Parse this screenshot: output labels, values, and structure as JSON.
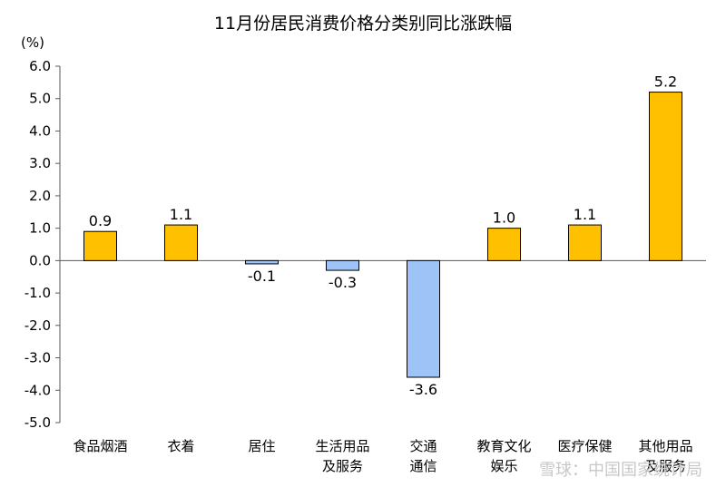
{
  "chart_data": {
    "type": "bar",
    "title": "11月份居民消费价格分类别同比涨跌幅",
    "unit_label": "(%)",
    "xlabel": "",
    "ylabel": "",
    "ylim": [
      -5.0,
      6.0
    ],
    "yticks": [
      "6.0",
      "5.0",
      "4.0",
      "3.0",
      "2.0",
      "1.0",
      "0.0",
      "-1.0",
      "-2.0",
      "-3.0",
      "-4.0",
      "-5.0"
    ],
    "categories": [
      [
        "食品烟酒"
      ],
      [
        "衣着"
      ],
      [
        "居住"
      ],
      [
        "生活用品",
        "及服务"
      ],
      [
        "交通",
        "通信"
      ],
      [
        "教育文化",
        "娱乐"
      ],
      [
        "医疗保健"
      ],
      [
        "其他用品",
        "及服务"
      ]
    ],
    "values": [
      0.9,
      1.1,
      -0.1,
      -0.3,
      -3.6,
      1.0,
      1.1,
      5.2
    ],
    "data_labels": [
      "0.9",
      "1.1",
      "-0.1",
      "-0.3",
      "-3.6",
      "1.0",
      "1.1",
      "5.2"
    ],
    "grid": false,
    "legend": "none",
    "colors": {
      "positive_fill": "#FFC000",
      "positive_stroke": "#000000",
      "negative_fill": "#9DC3F7",
      "negative_stroke": "#000000",
      "axis": "#595959"
    }
  },
  "watermark": "雪球：中国国家统计局"
}
